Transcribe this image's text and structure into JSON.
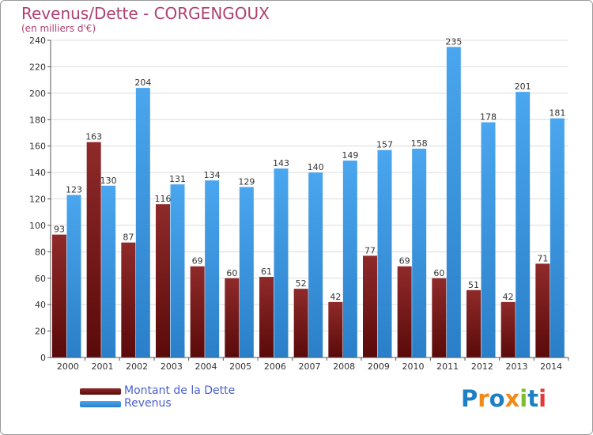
{
  "chart_data": {
    "type": "bar",
    "title": "Revenus/Dette - CORGENGOUX",
    "subtitle": "(en milliers d'€)",
    "categories": [
      "2000",
      "2001",
      "2002",
      "2003",
      "2004",
      "2005",
      "2006",
      "2007",
      "2008",
      "2009",
      "2010",
      "2011",
      "2012",
      "2013",
      "2014"
    ],
    "series": [
      {
        "name": "Montant de la Dette",
        "color": "#7a1e1e",
        "values": [
          93,
          163,
          87,
          116,
          69,
          60,
          61,
          52,
          42,
          77,
          69,
          60,
          51,
          42,
          71
        ]
      },
      {
        "name": "Revenus",
        "color": "#3d9be6",
        "values": [
          123,
          130,
          204,
          131,
          134,
          129,
          143,
          140,
          149,
          157,
          158,
          235,
          178,
          201,
          181
        ]
      }
    ],
    "yticks": [
      0,
      20,
      40,
      60,
      80,
      100,
      120,
      140,
      160,
      180,
      200,
      220,
      240
    ],
    "ylim": [
      0,
      240
    ],
    "grid": true,
    "legend_position": "bottom-left"
  },
  "logo_text": "Proxiti"
}
